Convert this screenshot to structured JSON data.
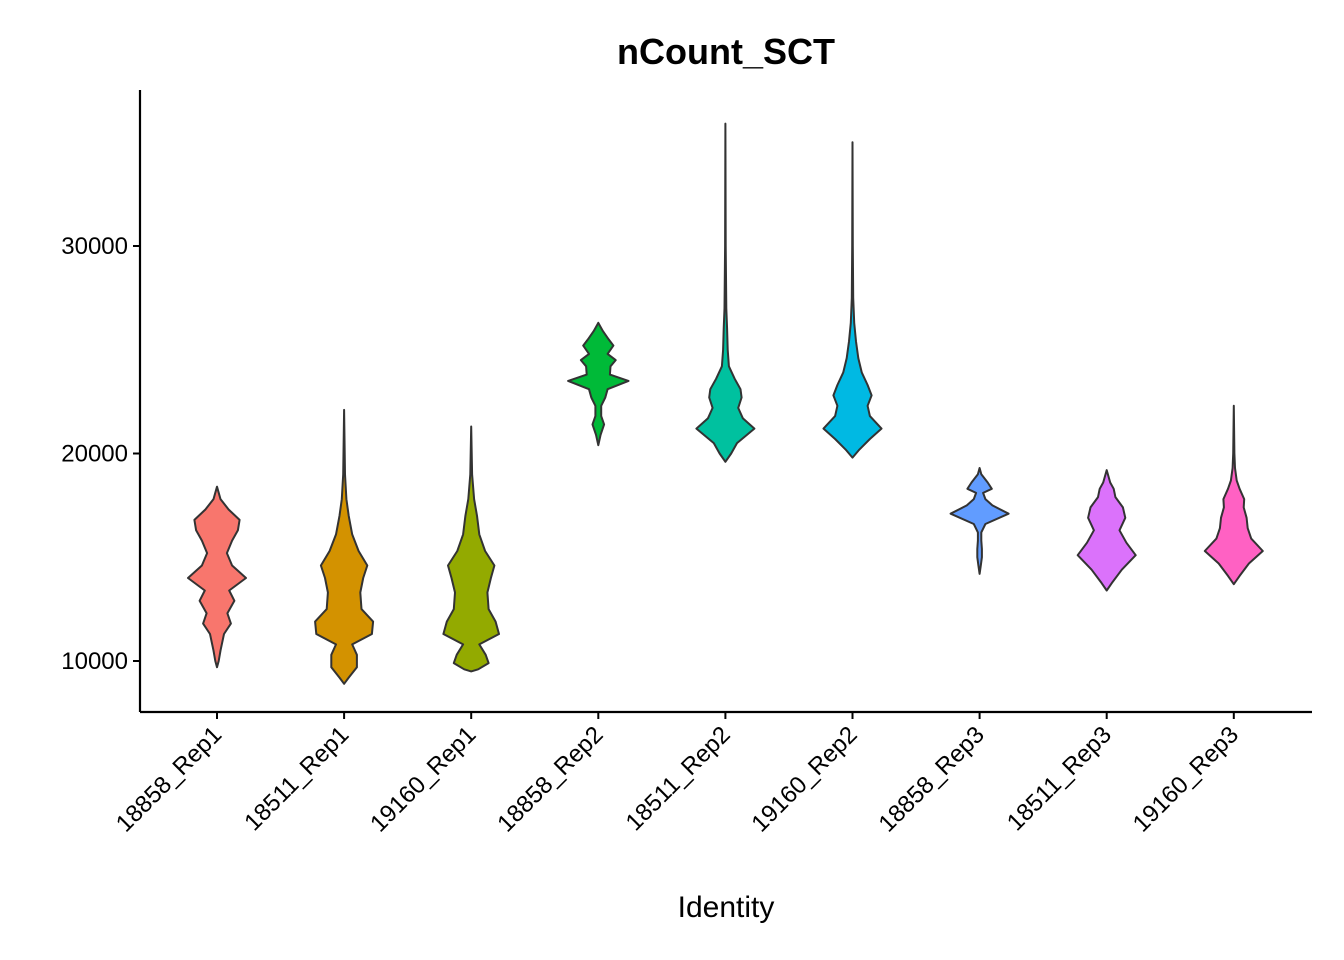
{
  "chart_data": {
    "type": "violin",
    "title": "nCount_SCT",
    "xlabel": "Identity",
    "ylabel": "",
    "ylim": [
      7500,
      37500
    ],
    "yticks": [
      10000,
      20000,
      30000
    ],
    "ytick_labels": [
      "10000",
      "20000",
      "30000"
    ],
    "grid": false,
    "legend": "none",
    "categories": [
      "18858_Rep1",
      "18511_Rep1",
      "19160_Rep1",
      "18858_Rep2",
      "18511_Rep2",
      "19160_Rep2",
      "18858_Rep3",
      "18511_Rep3",
      "19160_Rep3"
    ],
    "colors": [
      "#F8766D",
      "#D39200",
      "#93AA00",
      "#00BA38",
      "#00C19F",
      "#00B9E3",
      "#619CFF",
      "#DB72FB",
      "#FF61C3"
    ],
    "outline_color": "#333333",
    "violins": [
      {
        "name": "18858_Rep1",
        "min": 9700,
        "max": 18400,
        "profile": [
          [
            9700,
            0
          ],
          [
            10000,
            0.03
          ],
          [
            10500,
            0.06
          ],
          [
            11300,
            0.12
          ],
          [
            11800,
            0.24
          ],
          [
            12300,
            0.18
          ],
          [
            12900,
            0.3
          ],
          [
            13400,
            0.21
          ],
          [
            14000,
            0.5
          ],
          [
            14600,
            0.26
          ],
          [
            15200,
            0.17
          ],
          [
            15800,
            0.26
          ],
          [
            16300,
            0.36
          ],
          [
            16800,
            0.39
          ],
          [
            17300,
            0.2
          ],
          [
            17800,
            0.06
          ],
          [
            18400,
            0
          ]
        ]
      },
      {
        "name": "18511_Rep1",
        "min": 8900,
        "max": 22100,
        "profile": [
          [
            8900,
            0
          ],
          [
            9200,
            0.08
          ],
          [
            9700,
            0.22
          ],
          [
            10300,
            0.22
          ],
          [
            10800,
            0.14
          ],
          [
            11300,
            0.48
          ],
          [
            11900,
            0.5
          ],
          [
            12500,
            0.3
          ],
          [
            13300,
            0.28
          ],
          [
            14000,
            0.33
          ],
          [
            14600,
            0.4
          ],
          [
            15300,
            0.25
          ],
          [
            16100,
            0.14
          ],
          [
            17000,
            0.08
          ],
          [
            17800,
            0.04
          ],
          [
            19000,
            0.015
          ],
          [
            22100,
            0
          ]
        ]
      },
      {
        "name": "19160_Rep1",
        "min": 9500,
        "max": 21300,
        "profile": [
          [
            9500,
            0
          ],
          [
            9600,
            0.12
          ],
          [
            9900,
            0.3
          ],
          [
            10300,
            0.25
          ],
          [
            10800,
            0.14
          ],
          [
            11300,
            0.48
          ],
          [
            11900,
            0.42
          ],
          [
            12500,
            0.3
          ],
          [
            13300,
            0.28
          ],
          [
            14000,
            0.34
          ],
          [
            14600,
            0.4
          ],
          [
            15300,
            0.24
          ],
          [
            16100,
            0.14
          ],
          [
            17000,
            0.1
          ],
          [
            17800,
            0.05
          ],
          [
            19000,
            0.015
          ],
          [
            21300,
            0
          ]
        ]
      },
      {
        "name": "18858_Rep2",
        "min": 20400,
        "max": 26300,
        "profile": [
          [
            20400,
            0
          ],
          [
            20900,
            0.04
          ],
          [
            21400,
            0.1
          ],
          [
            21800,
            0.05
          ],
          [
            22300,
            0.05
          ],
          [
            22700,
            0.12
          ],
          [
            23100,
            0.16
          ],
          [
            23500,
            0.52
          ],
          [
            23800,
            0.2
          ],
          [
            24200,
            0.21
          ],
          [
            24500,
            0.3
          ],
          [
            24800,
            0.16
          ],
          [
            25200,
            0.26
          ],
          [
            25500,
            0.18
          ],
          [
            25900,
            0.08
          ],
          [
            26300,
            0
          ]
        ]
      },
      {
        "name": "18511_Rep2",
        "min": 19600,
        "max": 35900,
        "profile": [
          [
            19600,
            0
          ],
          [
            20000,
            0.1
          ],
          [
            20500,
            0.2
          ],
          [
            21200,
            0.5
          ],
          [
            21700,
            0.3
          ],
          [
            22200,
            0.22
          ],
          [
            22700,
            0.28
          ],
          [
            23100,
            0.26
          ],
          [
            23600,
            0.16
          ],
          [
            24200,
            0.06
          ],
          [
            25000,
            0.04
          ],
          [
            26000,
            0.03
          ],
          [
            27000,
            0.015
          ],
          [
            30000,
            0.006
          ],
          [
            35900,
            0
          ]
        ]
      },
      {
        "name": "19160_Rep2",
        "min": 19800,
        "max": 35000,
        "profile": [
          [
            19800,
            0
          ],
          [
            20200,
            0.12
          ],
          [
            20700,
            0.3
          ],
          [
            21200,
            0.5
          ],
          [
            21800,
            0.3
          ],
          [
            22300,
            0.26
          ],
          [
            22800,
            0.33
          ],
          [
            23300,
            0.26
          ],
          [
            23900,
            0.16
          ],
          [
            24600,
            0.1
          ],
          [
            25400,
            0.06
          ],
          [
            26300,
            0.03
          ],
          [
            27500,
            0.012
          ],
          [
            30000,
            0.005
          ],
          [
            35000,
            0
          ]
        ]
      },
      {
        "name": "18858_Rep3",
        "min": 14200,
        "max": 19300,
        "profile": [
          [
            14200,
            0
          ],
          [
            14600,
            0.02
          ],
          [
            15000,
            0.04
          ],
          [
            15400,
            0.04
          ],
          [
            15800,
            0.03
          ],
          [
            16200,
            0.03
          ],
          [
            16600,
            0.1
          ],
          [
            17100,
            0.5
          ],
          [
            17500,
            0.22
          ],
          [
            17800,
            0.1
          ],
          [
            18100,
            0.06
          ],
          [
            18300,
            0.21
          ],
          [
            18600,
            0.14
          ],
          [
            19000,
            0.03
          ],
          [
            19300,
            0
          ]
        ]
      },
      {
        "name": "18511_Rep3",
        "min": 13400,
        "max": 19200,
        "profile": [
          [
            13400,
            0
          ],
          [
            13800,
            0.1
          ],
          [
            14400,
            0.26
          ],
          [
            15100,
            0.5
          ],
          [
            15700,
            0.34
          ],
          [
            16300,
            0.22
          ],
          [
            16900,
            0.32
          ],
          [
            17400,
            0.28
          ],
          [
            17900,
            0.15
          ],
          [
            18300,
            0.12
          ],
          [
            18600,
            0.06
          ],
          [
            19200,
            0
          ]
        ]
      },
      {
        "name": "19160_Rep3",
        "min": 13700,
        "max": 22300,
        "profile": [
          [
            13700,
            0
          ],
          [
            14100,
            0.1
          ],
          [
            14700,
            0.26
          ],
          [
            15300,
            0.5
          ],
          [
            15900,
            0.3
          ],
          [
            16400,
            0.24
          ],
          [
            16900,
            0.22
          ],
          [
            17400,
            0.17
          ],
          [
            17800,
            0.18
          ],
          [
            18300,
            0.1
          ],
          [
            18700,
            0.05
          ],
          [
            19300,
            0.02
          ],
          [
            20000,
            0.01
          ],
          [
            22300,
            0
          ]
        ]
      }
    ]
  }
}
